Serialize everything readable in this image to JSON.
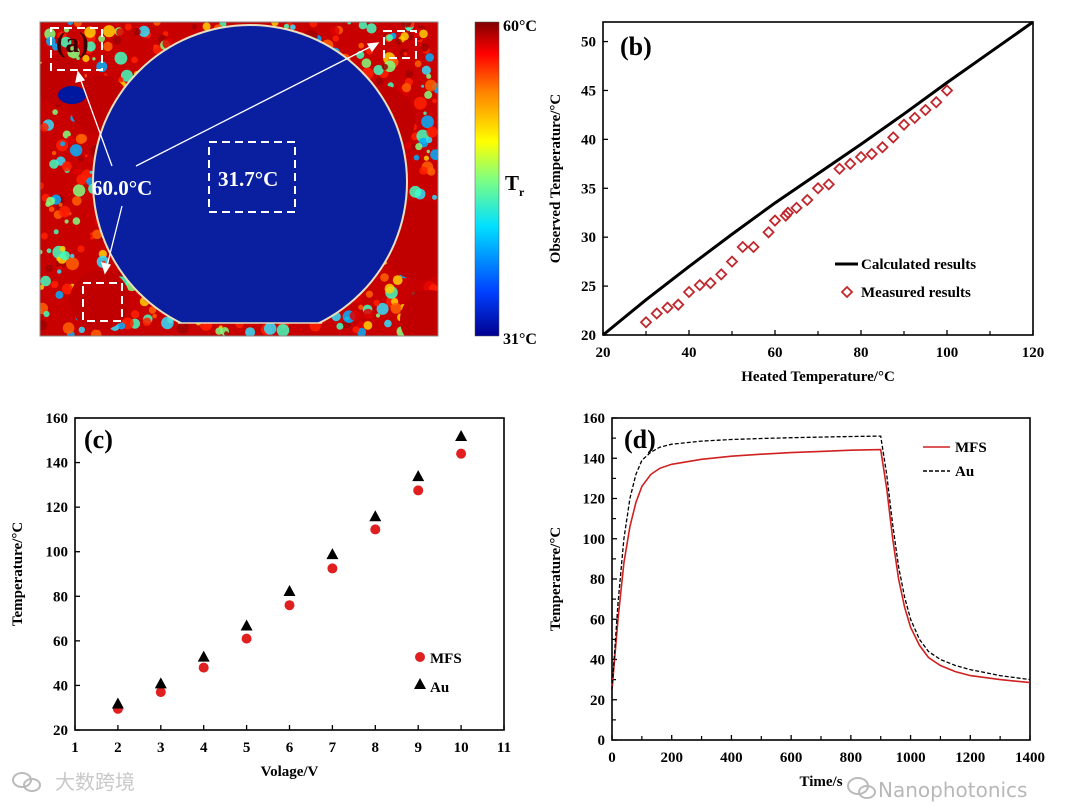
{
  "chart_data": [
    {
      "panel": "(a)",
      "type": "heatmap",
      "colorbar": {
        "max_label": "60°C",
        "min_label": "31°C",
        "label": "T",
        "label_sub": "r",
        "colors": [
          "#00008f",
          "#0040ff",
          "#00e0ff",
          "#80ff80",
          "#ffff00",
          "#ff8000",
          "#ff0000",
          "#800000"
        ]
      },
      "annotations": {
        "hot": "60.0°C",
        "center": "31.7°C"
      }
    },
    {
      "panel": "(b)",
      "type": "scatter",
      "xlabel": "Heated Temperature/°C",
      "ylabel": "Observed Temperature/°C",
      "xlim": [
        20,
        120
      ],
      "ylim": [
        20,
        52
      ],
      "xticks": [
        20,
        40,
        60,
        80,
        100,
        120
      ],
      "yticks": [
        20,
        25,
        30,
        35,
        40,
        45,
        50
      ],
      "series": [
        {
          "name": "Calculated results",
          "kind": "line",
          "color": "#000000",
          "x": [
            20,
            30,
            40,
            50,
            60,
            70,
            80,
            90,
            100,
            110,
            120
          ],
          "y": [
            20,
            23.6,
            27,
            30.3,
            33.5,
            36.5,
            39.5,
            42.6,
            45.8,
            48.9,
            52
          ]
        },
        {
          "name": "Measured results",
          "kind": "marker",
          "color": "#c0282d",
          "x": [
            30,
            32.5,
            35,
            37.5,
            40,
            42.5,
            45,
            47.5,
            50,
            52.5,
            55,
            58.5,
            60,
            62.5,
            63,
            65,
            67.5,
            70,
            72.5,
            75,
            77.5,
            80,
            82.5,
            85,
            87.5,
            90,
            92.5,
            95,
            97.5,
            100
          ],
          "y": [
            21.3,
            22.2,
            22.8,
            23.1,
            24.4,
            25.1,
            25.3,
            26.2,
            27.5,
            29,
            29,
            30.5,
            31.7,
            32.2,
            32.5,
            33,
            33.8,
            35,
            35.4,
            37,
            37.5,
            38.2,
            38.5,
            39.2,
            40.2,
            41.5,
            42.2,
            43,
            43.8,
            45
          ]
        }
      ],
      "legend": "bottom-right"
    },
    {
      "panel": "(c)",
      "type": "scatter",
      "xlabel": "Volage/V",
      "ylabel": "Temperature/°C",
      "xlim": [
        1,
        11
      ],
      "ylim": [
        20,
        160
      ],
      "xticks": [
        1,
        2,
        3,
        4,
        5,
        6,
        7,
        8,
        9,
        10,
        11
      ],
      "yticks": [
        20,
        40,
        60,
        80,
        100,
        120,
        140,
        160
      ],
      "x": [
        2,
        3,
        4,
        5,
        6,
        7,
        8,
        9,
        10
      ],
      "series": [
        {
          "name": "MFS",
          "marker": "circle",
          "color": "#e02020",
          "values": [
            29.5,
            37,
            48,
            61,
            76,
            92.5,
            110,
            127.5,
            144
          ]
        },
        {
          "name": "Au",
          "marker": "triangle",
          "color": "#000000",
          "values": [
            31,
            40,
            52,
            66,
            81.5,
            98,
            115,
            133,
            151
          ]
        }
      ],
      "legend": "bottom-right"
    },
    {
      "panel": "(d)",
      "type": "line",
      "xlabel": "Time/s",
      "ylabel": "Temperature/°C",
      "xlim": [
        0,
        1400
      ],
      "ylim": [
        0,
        160
      ],
      "xticks": [
        0,
        200,
        400,
        600,
        800,
        1000,
        1200,
        1400
      ],
      "yticks": [
        0,
        20,
        40,
        60,
        80,
        100,
        120,
        140,
        160
      ],
      "series": [
        {
          "name": "MFS",
          "color": "#d02020",
          "dash": false,
          "x": [
            0,
            20,
            40,
            60,
            80,
            100,
            130,
            160,
            200,
            300,
            400,
            500,
            600,
            700,
            800,
            900,
            920,
            940,
            960,
            980,
            1000,
            1030,
            1060,
            1100,
            1150,
            1200,
            1300,
            1400
          ],
          "y": [
            25,
            60,
            88,
            106,
            118,
            126,
            132,
            135,
            137,
            139.5,
            141,
            142,
            142.8,
            143.4,
            144,
            144.3,
            125,
            100,
            80,
            66,
            56,
            47,
            41,
            37,
            34,
            32,
            30,
            28.5
          ]
        },
        {
          "name": "Au",
          "color": "#000000",
          "dash": true,
          "x": [
            0,
            20,
            40,
            60,
            80,
            100,
            130,
            160,
            200,
            300,
            400,
            500,
            600,
            700,
            800,
            900,
            920,
            940,
            960,
            980,
            1000,
            1030,
            1060,
            1100,
            1150,
            1200,
            1300,
            1400
          ],
          "y": [
            25,
            68,
            100,
            120,
            132,
            139,
            143,
            145.5,
            147,
            148.5,
            149.3,
            149.8,
            150.2,
            150.5,
            150.8,
            151,
            132,
            107,
            86,
            71,
            60,
            50,
            44,
            40,
            37,
            35,
            32,
            30
          ]
        }
      ],
      "legend": "top-right"
    }
  ],
  "watermarks": {
    "left": "大数跨境",
    "right": "Nanophotonics"
  }
}
